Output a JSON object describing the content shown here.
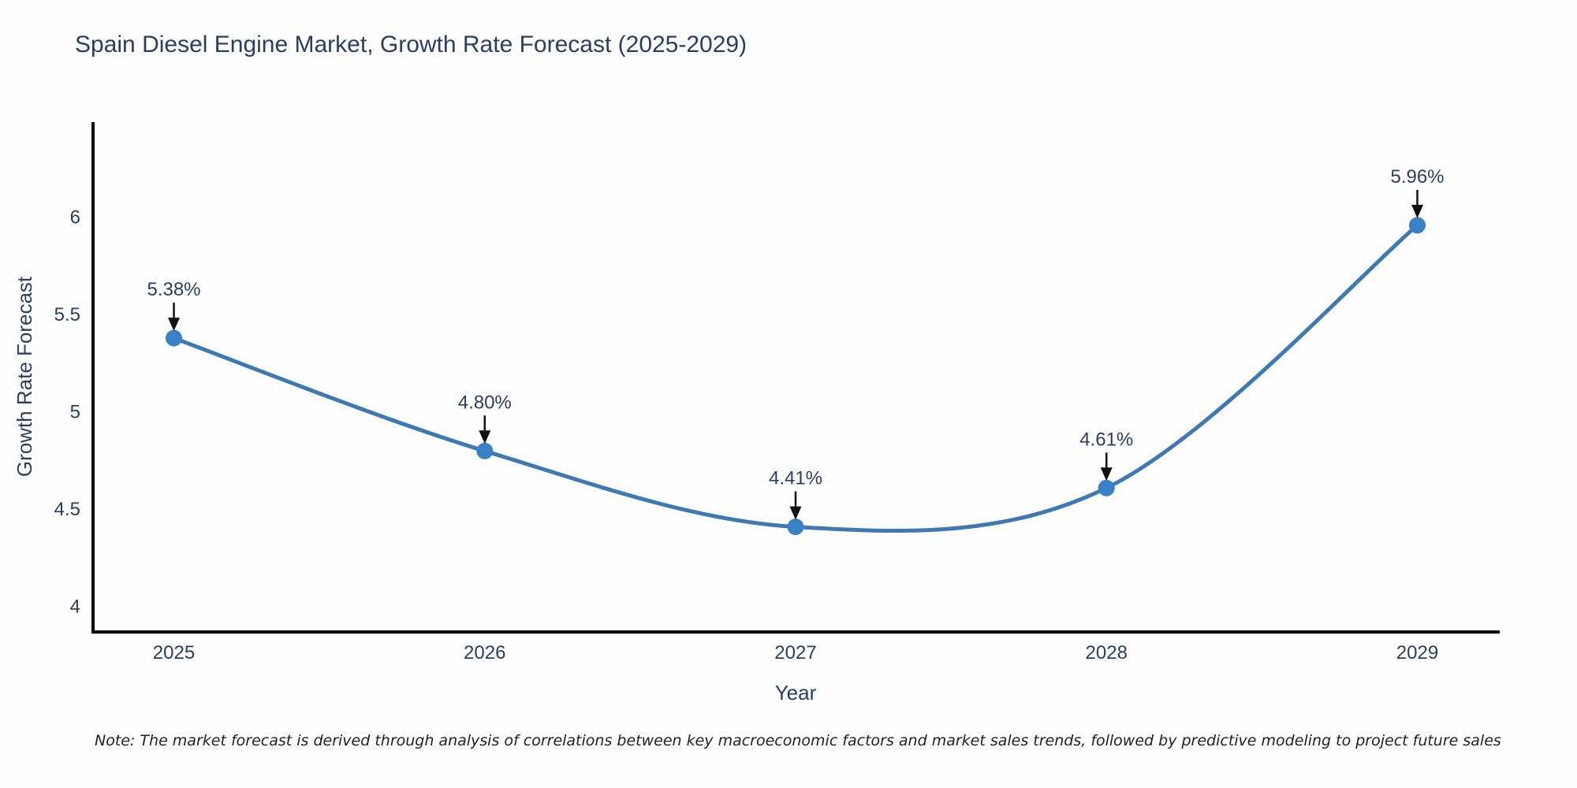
{
  "footnote": {
    "text": "Note: The market forecast is derived through analysis of correlations between key macroeconomic factors and market sales trends, followed by predictive modeling to project future sales"
  },
  "chart_data": {
    "type": "line",
    "title": "Spain Diesel Engine Market, Growth Rate Forecast (2025-2029)",
    "xlabel": "Year",
    "ylabel": "Growth Rate Forecast",
    "x": [
      2025,
      2026,
      2027,
      2028,
      2029
    ],
    "y": [
      5.38,
      4.8,
      4.41,
      4.61,
      5.96
    ],
    "point_labels": [
      "5.38%",
      "4.80%",
      "4.41%",
      "4.61%",
      "5.96%"
    ],
    "xticks": [
      "2025",
      "2026",
      "2027",
      "2028",
      "2029"
    ],
    "yticks": [
      "4",
      "4.5",
      "5",
      "5.5",
      "6"
    ],
    "xlim": [
      2024.74,
      2029.26
    ],
    "ylim": [
      3.87,
      6.49
    ],
    "grid": false,
    "legend": false,
    "line_shape": "spline",
    "marker_style": "circle",
    "annotation_style": "label-with-down-arrow",
    "colors": {
      "line": "#3e79b4",
      "marker": "#3a80c4",
      "text": "#2a3f5f",
      "axis": "#000000",
      "arrow": "#111111",
      "note": "#222222"
    }
  }
}
